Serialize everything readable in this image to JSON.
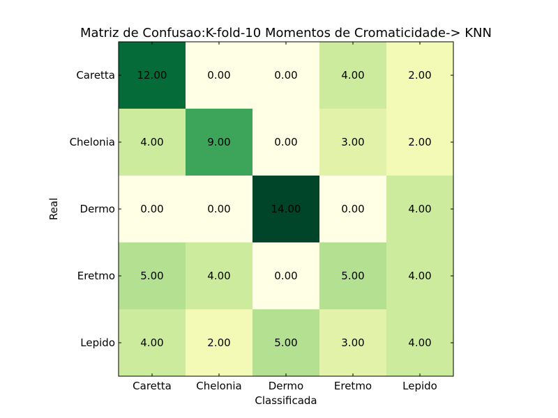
{
  "chart_data": {
    "type": "heatmap",
    "title": "Matriz de Confusao:K-fold-10 Momentos de Cromaticidade-> KNN",
    "xlabel": "Classificada",
    "ylabel": "Real",
    "x_categories": [
      "Caretta",
      "Chelonia",
      "Dermo",
      "Eretmo",
      "Lepido"
    ],
    "y_categories": [
      "Caretta",
      "Chelonia",
      "Dermo",
      "Eretmo",
      "Lepido"
    ],
    "values": [
      [
        12,
        0,
        0,
        4,
        2
      ],
      [
        4,
        9,
        0,
        3,
        2
      ],
      [
        0,
        0,
        14,
        0,
        4
      ],
      [
        5,
        4,
        0,
        5,
        4
      ],
      [
        4,
        2,
        5,
        3,
        4
      ]
    ],
    "labels": [
      [
        "12.00",
        "0.00",
        "0.00",
        "4.00",
        "2.00"
      ],
      [
        "4.00",
        "9.00",
        "0.00",
        "3.00",
        "2.00"
      ],
      [
        "0.00",
        "0.00",
        "14.00",
        "0.00",
        "4.00"
      ],
      [
        "5.00",
        "4.00",
        "0.00",
        "5.00",
        "4.00"
      ],
      [
        "4.00",
        "2.00",
        "5.00",
        "3.00",
        "4.00"
      ]
    ],
    "value_range": [
      0,
      14
    ],
    "colormap": "YlGn",
    "colorbar": false,
    "grid": false
  }
}
